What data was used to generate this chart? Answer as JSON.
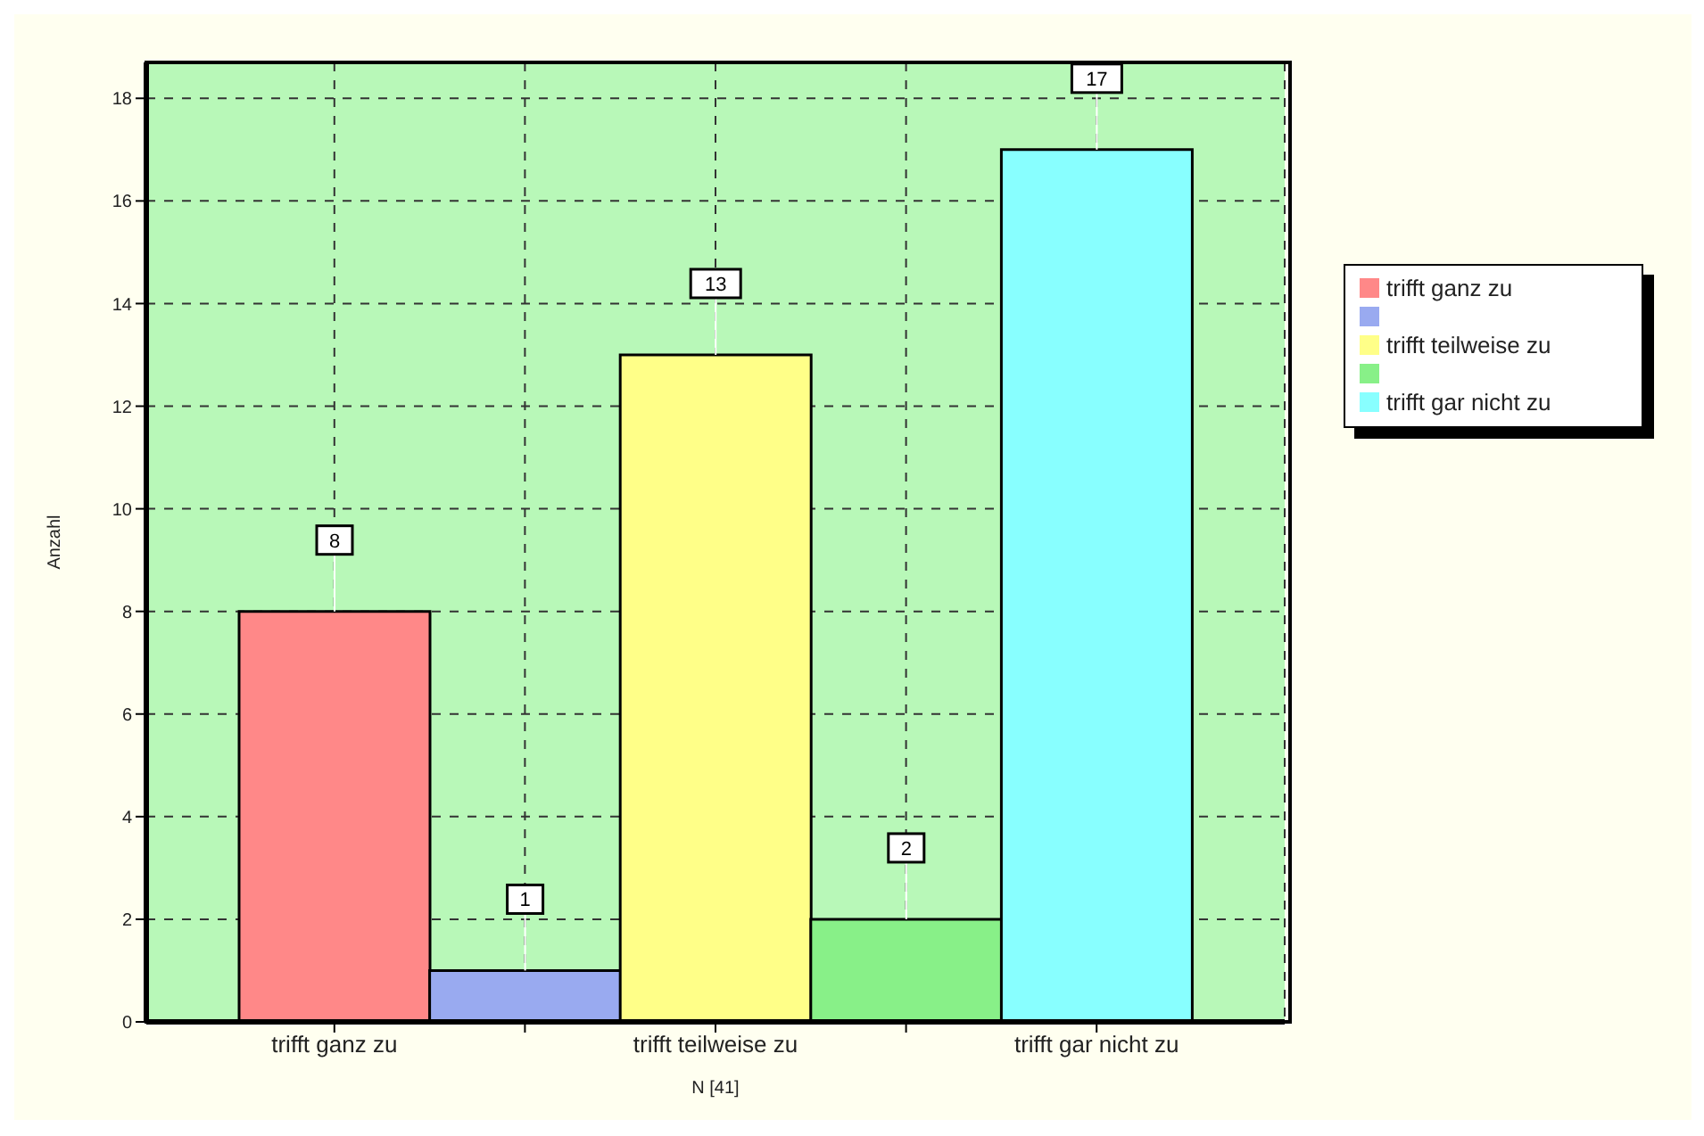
{
  "chart_data": {
    "type": "bar",
    "xlabel": "N [41]",
    "ylabel": "Anzahl",
    "categories": [
      "trifft ganz zu",
      null,
      "trifft teilweise zu",
      null,
      "trifft gar nicht zu"
    ],
    "series": [
      {
        "name": "trifft ganz zu",
        "color": "#ff8888",
        "values": [
          8,
          null,
          null,
          null,
          null
        ]
      },
      {
        "color": "#99aaf0",
        "values": [
          null,
          1,
          null,
          null,
          null
        ]
      },
      {
        "name": "trifft teilweise zu",
        "color": "#ffff88",
        "values": [
          null,
          null,
          13,
          null,
          null
        ]
      },
      {
        "color": "#88f088",
        "values": [
          null,
          null,
          null,
          2,
          null
        ]
      },
      {
        "name": "trifft gar nicht zu",
        "color": "#88ffff",
        "values": [
          null,
          null,
          null,
          null,
          17
        ]
      }
    ],
    "stacked": true,
    "ylim": [
      0,
      18.7
    ],
    "yticks": [
      0,
      2,
      4,
      6,
      8,
      10,
      12,
      14,
      16,
      18
    ],
    "grid": true,
    "legend": "right",
    "data_labels": true
  }
}
